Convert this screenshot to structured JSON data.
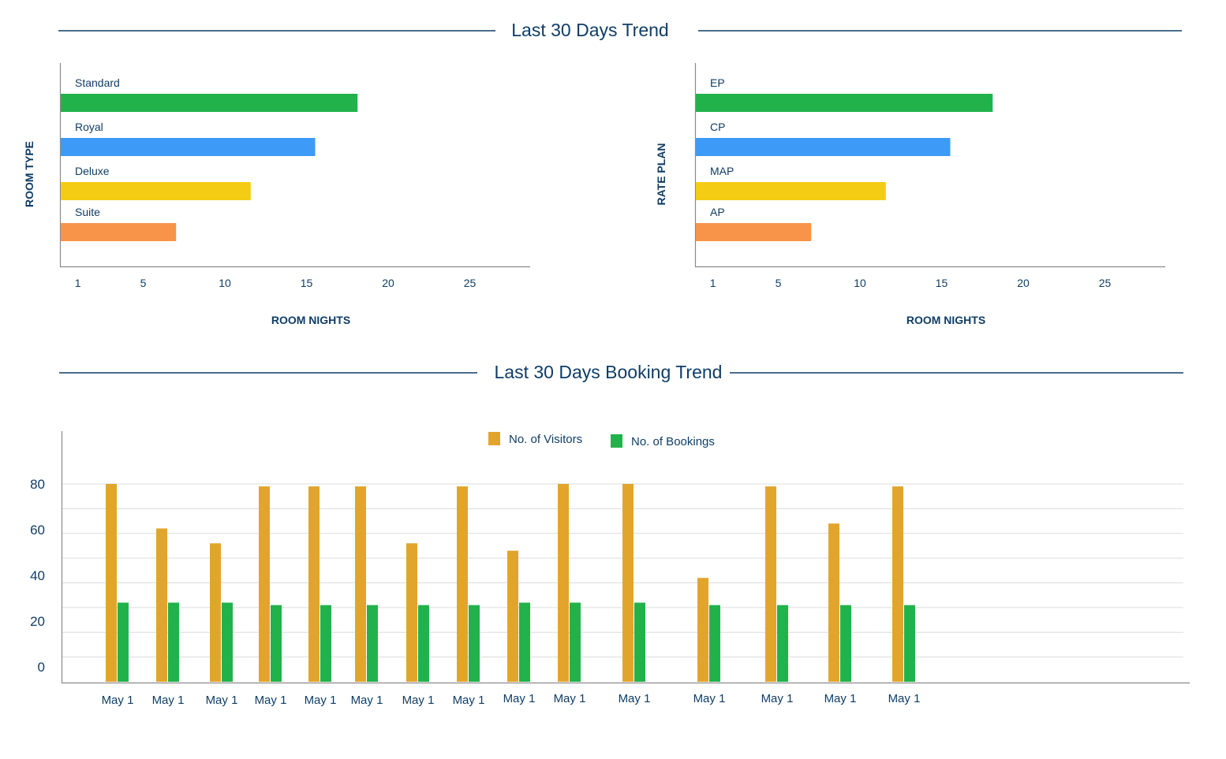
{
  "sections": {
    "trend_title": "Last 30 Days Trend",
    "booking_title": "Last 30 Days Booking Trend"
  },
  "chart_data": [
    {
      "type": "bar",
      "orientation": "horizontal",
      "categories": [
        "Standard",
        "Royal",
        "Deluxe",
        "Suite"
      ],
      "values": [
        17.5,
        15,
        11.2,
        6.8
      ],
      "colors": [
        "#22b24c",
        "#3d9bf7",
        "#f5cc14",
        "#f7944a"
      ],
      "xlabel": "ROOM NIGHTS",
      "ylabel": "ROOM TYPE",
      "xticks": [
        1,
        5,
        10,
        15,
        20,
        25
      ],
      "xlim": [
        0,
        28.7
      ],
      "grid": false
    },
    {
      "type": "bar",
      "orientation": "horizontal",
      "categories": [
        "EP",
        "CP",
        "MAP",
        "AP"
      ],
      "values": [
        17.5,
        15,
        11.2,
        6.8
      ],
      "colors": [
        "#22b24c",
        "#3d9bf7",
        "#f5cc14",
        "#f7944a"
      ],
      "xlabel": "ROOM NIGHTS",
      "ylabel": "RATE PLAN",
      "xticks": [
        1,
        5,
        10,
        15,
        20,
        25
      ],
      "xlim": [
        0,
        28.7
      ],
      "grid": false
    },
    {
      "type": "bar",
      "orientation": "vertical",
      "categories": [
        "May 1",
        "May 1",
        "May 1",
        "May 1",
        "May 1",
        "May 1",
        "May 1",
        "May 1",
        "May 1",
        "May 1",
        "May 1",
        "May 1",
        "May 1",
        "May 1",
        "May 1"
      ],
      "series": [
        {
          "name": "No. of Visitors",
          "color": "#e2a52c",
          "values": [
            80,
            62,
            56,
            79,
            79,
            79,
            56,
            79,
            53,
            80,
            80,
            42,
            79,
            64,
            79
          ]
        },
        {
          "name": "No. of Bookings",
          "color": "#22b24c",
          "values": [
            32,
            32,
            32,
            31,
            31,
            31,
            31,
            31,
            32,
            32,
            32,
            31,
            31,
            31,
            31
          ]
        }
      ],
      "yticks": [
        0,
        20,
        40,
        60,
        80
      ],
      "ylim": [
        0,
        80
      ],
      "grid": true,
      "legend": "top-center"
    }
  ]
}
